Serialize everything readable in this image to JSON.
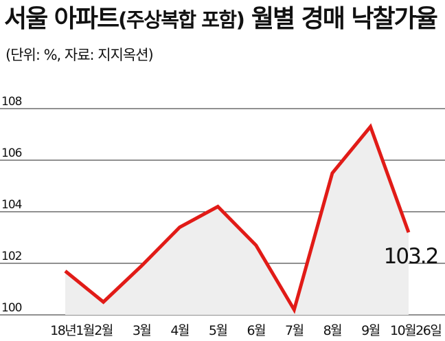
{
  "header": {
    "title_main": "서울 아파트",
    "title_paren": "(주상복합 포함)",
    "title_tail": " 월별 경매 낙찰가율",
    "subtitle": "(단위: %, 자료: 지지옥션)"
  },
  "colors": {
    "line": "#e11b17",
    "area": "#eeeeee",
    "grid": "#222222"
  },
  "chart_data": {
    "type": "line",
    "title": "서울 아파트(주상복합 포함) 월별 경매 낙찰가율",
    "unit": "%",
    "source": "지지옥션",
    "categories": [
      "18년1월",
      "2월",
      "3월",
      "4월",
      "5월",
      "6월",
      "7월",
      "8월",
      "9월",
      "10월26일"
    ],
    "values": [
      101.7,
      100.5,
      101.9,
      103.4,
      104.2,
      102.7,
      100.2,
      105.5,
      107.3,
      103.2
    ],
    "area_fill": true,
    "ylim": [
      100,
      108
    ],
    "yticks": [
      100,
      102,
      104,
      106,
      108
    ],
    "ytick_labels": [
      "100",
      "102",
      "104",
      "106",
      "108"
    ],
    "grid": true,
    "data_labels": [
      {
        "index": 9,
        "text": "103.2"
      }
    ]
  }
}
